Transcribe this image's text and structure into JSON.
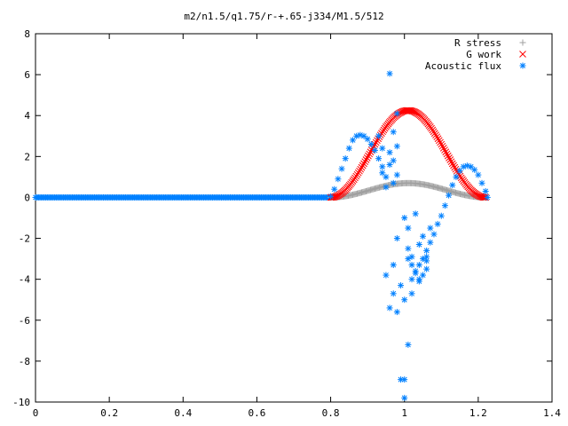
{
  "chart_data": {
    "type": "scatter",
    "title": "m2/n1.5/q1.75/r-+.65-j334/M1.5/512",
    "xlabel": "",
    "ylabel": "",
    "xlim": [
      0,
      1.4
    ],
    "ylim": [
      -10,
      8
    ],
    "x_ticks": [
      "0",
      "0.2",
      "0.4",
      "0.6",
      "0.8",
      "1",
      "1.2",
      "1.4"
    ],
    "y_ticks": [
      "8",
      "6",
      "4",
      "2",
      "0",
      "-2",
      "-4",
      "-6",
      "-8",
      "-10"
    ],
    "grid": false,
    "legend_position": "top-right",
    "series": [
      {
        "name": "R stress",
        "marker": "plus",
        "color": "#a0a0a0",
        "segments": [
          {
            "x_from": 0.0,
            "x_to": 0.8,
            "shape": "flat",
            "peak": 0.0
          },
          {
            "x_from": 0.8,
            "x_to": 1.22,
            "shape": "bump",
            "center": 1.01,
            "peak": 0.7
          }
        ]
      },
      {
        "name": "G work",
        "marker": "x",
        "color": "#ff0000",
        "segments": [
          {
            "x_from": 0.0,
            "x_to": 0.8,
            "shape": "flat",
            "peak": 0.0
          },
          {
            "x_from": 0.8,
            "x_to": 1.22,
            "shape": "bump",
            "center": 1.01,
            "peak": 4.25
          }
        ]
      },
      {
        "name": "Acoustic flux",
        "marker": "star",
        "color": "#0080ff",
        "points": [
          [
            0.8,
            0.05
          ],
          [
            0.81,
            0.4
          ],
          [
            0.82,
            0.9
          ],
          [
            0.83,
            1.4
          ],
          [
            0.84,
            1.9
          ],
          [
            0.85,
            2.4
          ],
          [
            0.86,
            2.8
          ],
          [
            0.87,
            3.0
          ],
          [
            0.88,
            3.05
          ],
          [
            0.89,
            3.0
          ],
          [
            0.9,
            2.85
          ],
          [
            0.91,
            2.6
          ],
          [
            0.92,
            2.3
          ],
          [
            0.93,
            1.9
          ],
          [
            0.94,
            1.5
          ],
          [
            0.93,
            3.0
          ],
          [
            0.94,
            2.4
          ],
          [
            0.94,
            1.2
          ],
          [
            0.95,
            1.0
          ],
          [
            0.95,
            0.5
          ],
          [
            0.96,
            6.05
          ],
          [
            0.96,
            2.2
          ],
          [
            0.96,
            1.6
          ],
          [
            0.97,
            1.8
          ],
          [
            0.97,
            0.7
          ],
          [
            0.97,
            3.2
          ],
          [
            0.98,
            2.5
          ],
          [
            0.98,
            4.1
          ],
          [
            0.98,
            1.1
          ],
          [
            0.95,
            -3.8
          ],
          [
            0.96,
            -5.4
          ],
          [
            0.97,
            -3.3
          ],
          [
            0.97,
            -4.7
          ],
          [
            0.98,
            -5.6
          ],
          [
            0.98,
            -2.0
          ],
          [
            0.99,
            -4.3
          ],
          [
            0.99,
            -8.9
          ],
          [
            1.0,
            -9.8
          ],
          [
            1.0,
            -8.9
          ],
          [
            1.0,
            -1.0
          ],
          [
            1.01,
            -1.5
          ],
          [
            1.01,
            -2.5
          ],
          [
            1.01,
            -3.0
          ],
          [
            1.02,
            -4.7
          ],
          [
            1.02,
            -3.3
          ],
          [
            1.03,
            -3.6
          ],
          [
            1.04,
            -4.1
          ],
          [
            1.05,
            -3.8
          ],
          [
            1.06,
            -3.5
          ],
          [
            1.01,
            -7.2
          ],
          [
            1.0,
            -5.0
          ],
          [
            1.04,
            -4.0
          ],
          [
            1.05,
            -3.0
          ],
          [
            1.06,
            -2.6
          ],
          [
            1.07,
            -2.2
          ],
          [
            1.08,
            -1.8
          ],
          [
            1.09,
            -1.3
          ],
          [
            1.1,
            -0.9
          ],
          [
            1.11,
            -0.4
          ],
          [
            1.12,
            0.1
          ],
          [
            1.13,
            0.6
          ],
          [
            1.14,
            1.0
          ],
          [
            1.15,
            1.3
          ],
          [
            1.16,
            1.5
          ],
          [
            1.17,
            1.55
          ],
          [
            1.18,
            1.5
          ],
          [
            1.19,
            1.35
          ],
          [
            1.2,
            1.1
          ],
          [
            1.21,
            0.7
          ],
          [
            1.22,
            0.3
          ],
          [
            1.225,
            0.0
          ],
          [
            1.03,
            -3.7
          ],
          [
            1.06,
            -2.9
          ],
          [
            1.07,
            -1.5
          ],
          [
            1.04,
            -2.3
          ],
          [
            1.05,
            -1.9
          ],
          [
            1.02,
            -2.9
          ],
          [
            1.03,
            -0.8
          ],
          [
            1.06,
            -3.1
          ],
          [
            1.02,
            -4.0
          ],
          [
            1.04,
            -3.3
          ]
        ],
        "baseline_segment": {
          "x_from": 0.0,
          "x_to": 0.8,
          "value": 0.0
        }
      }
    ]
  }
}
